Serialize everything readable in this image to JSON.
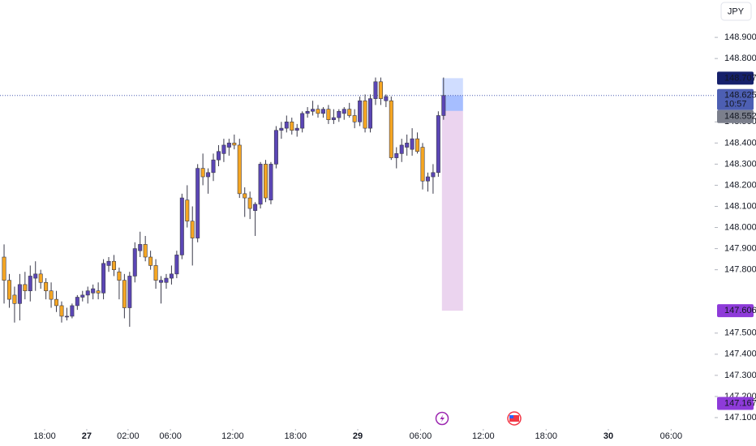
{
  "chart_data": {
    "type": "candlestick",
    "currency": "JPY",
    "up_color": "#5b46b5",
    "down_color": "#f5a623",
    "wick_color": "#3a3a4a",
    "xlim": [
      -0.78,
      135.66
    ],
    "ylim": [
      147.05,
      149.077
    ],
    "xticks": [
      {
        "value": 7.75,
        "label": "18:00"
      },
      {
        "value": 15.8,
        "label": "27"
      },
      {
        "value": 23.7,
        "label": "02:00"
      },
      {
        "value": 31.8,
        "label": "06:00"
      },
      {
        "value": 43.7,
        "label": "12:00"
      },
      {
        "value": 55.7,
        "label": "18:00"
      },
      {
        "value": 67.6,
        "label": "29"
      },
      {
        "value": 79.6,
        "label": "06:00"
      },
      {
        "value": 91.6,
        "label": "12:00"
      },
      {
        "value": 103.6,
        "label": "18:00"
      },
      {
        "value": 115.5,
        "label": "30"
      },
      {
        "value": 127.5,
        "label": "06:00"
      }
    ],
    "yticks": [
      {
        "value": 148.9,
        "label": "148.900"
      },
      {
        "value": 148.8,
        "label": "148.800"
      },
      {
        "value": 148.5,
        "label": "148.500"
      },
      {
        "value": 148.4,
        "label": "148.400"
      },
      {
        "value": 148.3,
        "label": "148.300"
      },
      {
        "value": 148.2,
        "label": "148.200"
      },
      {
        "value": 148.1,
        "label": "148.100"
      },
      {
        "value": 148.0,
        "label": "148.000"
      },
      {
        "value": 147.9,
        "label": "147.900"
      },
      {
        "value": 147.8,
        "label": "147.800"
      },
      {
        "value": 147.5,
        "label": "147.500"
      },
      {
        "value": 147.4,
        "label": "147.400"
      },
      {
        "value": 147.3,
        "label": "147.300"
      },
      {
        "value": 147.2,
        "label": "147.200"
      },
      {
        "value": 147.1,
        "label": "147.100"
      }
    ],
    "open": [
      147.86,
      147.75,
      147.68,
      147.64,
      147.73,
      147.7,
      147.76,
      147.78,
      147.74,
      147.7,
      147.66,
      147.63,
      147.58,
      147.58,
      147.63,
      147.67,
      147.68,
      147.69,
      147.7,
      147.69,
      147.82,
      147.84,
      147.79,
      147.75,
      147.62,
      147.77,
      147.89,
      147.92,
      147.86,
      147.82,
      147.74,
      147.74,
      147.76,
      147.78,
      147.87,
      148.13,
      148.03,
      147.95,
      148.28,
      148.24,
      148.26,
      148.32,
      148.35,
      148.38,
      148.4,
      148.39,
      148.16,
      148.14,
      148.08,
      148.11,
      148.3,
      148.13,
      148.3,
      148.46,
      148.47,
      148.5,
      148.46,
      148.47,
      148.54,
      148.55,
      148.56,
      148.54,
      148.56,
      148.51,
      148.52,
      148.54,
      148.56,
      148.53,
      148.5,
      148.6,
      148.47,
      148.61,
      148.69,
      148.6,
      148.6,
      148.33,
      148.35,
      148.38,
      148.37,
      148.42,
      148.38,
      148.22,
      148.24,
      148.26,
      148.53
    ],
    "high": [
      147.92,
      147.78,
      147.72,
      147.78,
      147.79,
      147.82,
      147.84,
      147.8,
      147.76,
      147.74,
      147.7,
      147.65,
      147.62,
      147.64,
      147.68,
      147.7,
      147.72,
      147.73,
      147.74,
      147.85,
      147.86,
      147.87,
      147.81,
      147.78,
      147.79,
      147.93,
      147.98,
      147.96,
      147.89,
      147.85,
      147.77,
      147.78,
      147.82,
      147.89,
      148.16,
      148.2,
      148.1,
      148.3,
      148.35,
      148.28,
      148.35,
      148.39,
      148.42,
      148.42,
      148.44,
      148.42,
      148.19,
      148.17,
      148.12,
      148.31,
      148.32,
      148.31,
      148.48,
      148.5,
      148.53,
      148.52,
      148.49,
      148.55,
      148.57,
      148.6,
      148.58,
      148.57,
      148.58,
      148.56,
      148.56,
      148.57,
      148.59,
      148.56,
      148.62,
      148.63,
      148.63,
      148.71,
      148.71,
      148.63,
      148.62,
      148.38,
      148.42,
      148.44,
      148.47,
      148.45,
      148.4,
      148.26,
      148.3,
      148.55,
      148.71
    ],
    "low": [
      147.64,
      147.62,
      147.55,
      147.56,
      147.66,
      147.65,
      147.7,
      147.71,
      147.66,
      147.62,
      147.6,
      147.55,
      147.56,
      147.57,
      147.61,
      147.65,
      147.64,
      147.66,
      147.66,
      147.66,
      147.79,
      147.77,
      147.66,
      147.57,
      147.53,
      147.74,
      147.86,
      147.84,
      147.8,
      147.71,
      147.64,
      147.71,
      147.73,
      147.76,
      147.85,
      148.0,
      147.82,
      147.93,
      148.2,
      148.16,
      148.22,
      148.29,
      148.31,
      148.34,
      148.37,
      148.14,
      148.05,
      148.04,
      147.96,
      148.09,
      148.12,
      148.11,
      148.28,
      148.42,
      148.45,
      148.44,
      148.43,
      148.45,
      148.52,
      148.53,
      148.52,
      148.52,
      148.49,
      148.49,
      148.5,
      148.51,
      148.52,
      148.47,
      148.48,
      148.45,
      148.45,
      148.58,
      148.58,
      148.57,
      148.32,
      148.28,
      148.31,
      148.34,
      148.34,
      148.35,
      148.18,
      148.17,
      148.16,
      148.24,
      148.51
    ],
    "close": [
      147.75,
      147.66,
      147.64,
      147.73,
      147.7,
      147.77,
      147.78,
      147.74,
      147.7,
      147.66,
      147.63,
      147.58,
      147.58,
      147.63,
      147.67,
      147.68,
      147.7,
      147.71,
      147.69,
      147.83,
      147.84,
      147.8,
      147.75,
      147.62,
      147.77,
      147.9,
      147.92,
      147.86,
      147.82,
      147.75,
      147.75,
      147.76,
      147.78,
      147.87,
      148.14,
      148.03,
      147.95,
      148.28,
      148.24,
      148.26,
      148.32,
      148.36,
      148.39,
      148.4,
      148.39,
      148.16,
      148.14,
      148.09,
      148.11,
      148.3,
      148.14,
      148.3,
      148.46,
      148.47,
      148.5,
      148.46,
      148.47,
      148.54,
      148.55,
      148.56,
      148.54,
      148.56,
      148.51,
      148.52,
      148.55,
      148.56,
      148.53,
      148.5,
      148.6,
      148.47,
      148.61,
      148.69,
      148.61,
      148.62,
      148.33,
      148.35,
      148.39,
      148.4,
      148.42,
      148.36,
      148.22,
      148.24,
      148.26,
      148.53,
      148.625
    ],
    "price_tags": [
      {
        "value": 148.707,
        "color": "#15206b"
      },
      {
        "value": 148.625,
        "countdown": "10:57",
        "color": "#4d5fb3"
      },
      {
        "value": 148.552,
        "color": "#7b7f8c"
      },
      {
        "value": 147.606,
        "color": "#8e3bd9"
      },
      {
        "value": 147.167,
        "color": "#8e3bd9"
      }
    ]
  }
}
